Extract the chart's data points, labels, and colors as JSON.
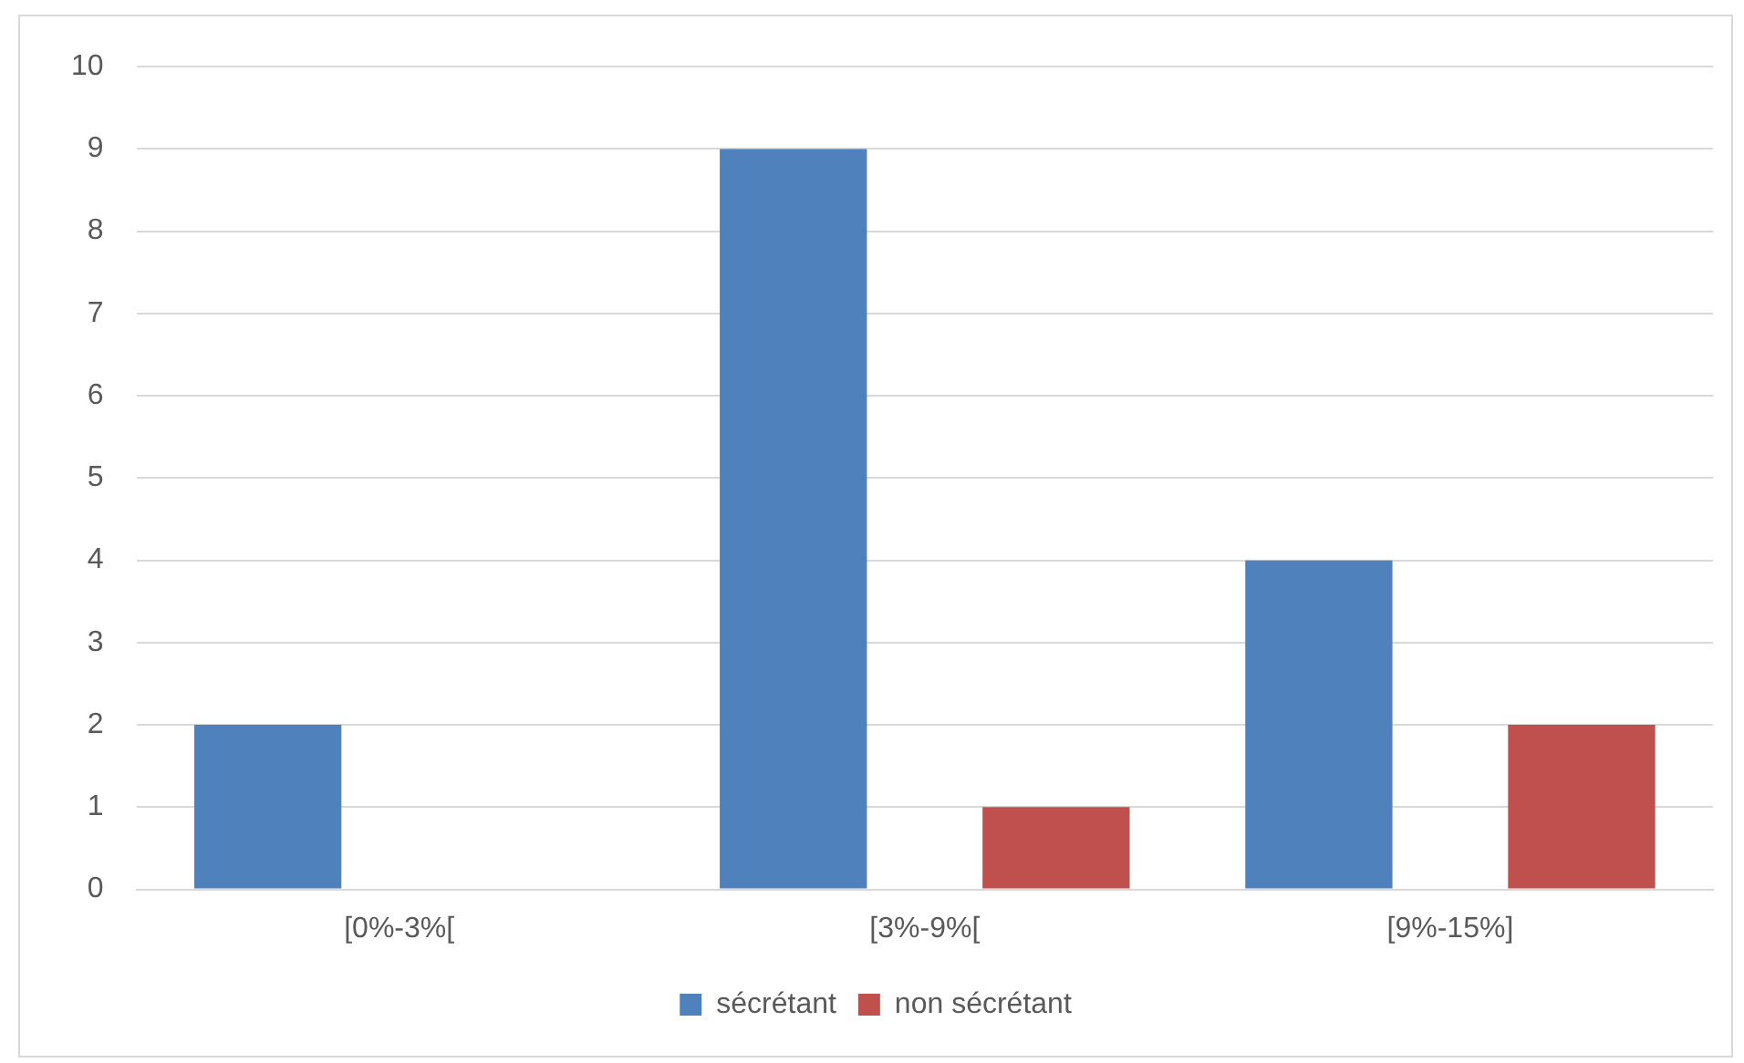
{
  "chart_data": {
    "type": "bar",
    "categories": [
      "[0%-3%[",
      "[3%-9%[",
      "[9%-15%]"
    ],
    "series": [
      {
        "name": "sécrétant",
        "color": "#4f81bd",
        "values": [
          2,
          9,
          4
        ]
      },
      {
        "name": "non sécrétant",
        "color": "#c0504d",
        "values": [
          0,
          1,
          2
        ]
      }
    ],
    "ylim": [
      0,
      10
    ],
    "yticks": [
      0,
      1,
      2,
      3,
      4,
      5,
      6,
      7,
      8,
      9,
      10
    ],
    "grid": "y",
    "legend": "bottom"
  }
}
